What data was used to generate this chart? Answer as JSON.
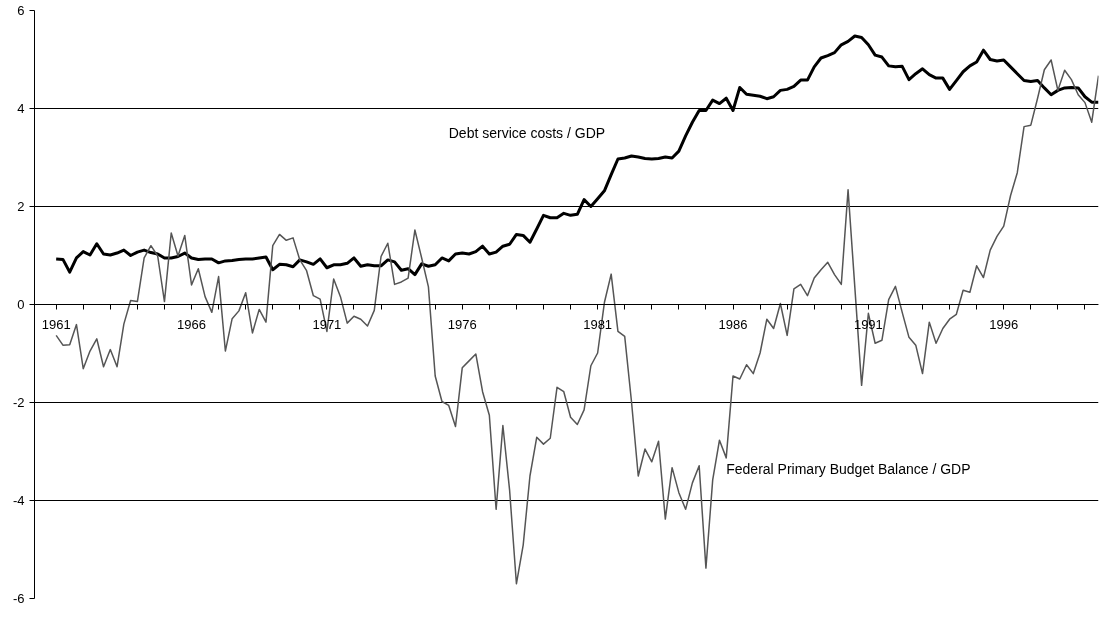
{
  "chart_data": {
    "type": "line",
    "categories": [
      "1961",
      null,
      null,
      null,
      null,
      null,
      null,
      null,
      null,
      null,
      null,
      null,
      null,
      null,
      null,
      null,
      null,
      null,
      null,
      null,
      "1966",
      null,
      null,
      null,
      null,
      null,
      null,
      null,
      null,
      null,
      null,
      null,
      null,
      null,
      null,
      null,
      null,
      null,
      null,
      null,
      "1971",
      null,
      null,
      null,
      null,
      null,
      null,
      null,
      null,
      null,
      null,
      null,
      null,
      null,
      null,
      null,
      null,
      null,
      null,
      null,
      "1976",
      null,
      null,
      null,
      null,
      null,
      null,
      null,
      null,
      null,
      null,
      null,
      null,
      null,
      null,
      null,
      null,
      null,
      null,
      null,
      "1981",
      null,
      null,
      null,
      null,
      null,
      null,
      null,
      null,
      null,
      null,
      null,
      null,
      null,
      null,
      null,
      null,
      null,
      null,
      null,
      "1986",
      null,
      null,
      null,
      null,
      null,
      null,
      null,
      null,
      null,
      null,
      null,
      null,
      null,
      null,
      null,
      null,
      null,
      null,
      null,
      "1991",
      null,
      null,
      null,
      null,
      null,
      null,
      null,
      null,
      null,
      null,
      null,
      null,
      null,
      null,
      null,
      null,
      null,
      null,
      null,
      "1996",
      null,
      null,
      null,
      null,
      null,
      null,
      null,
      null,
      null,
      null,
      null,
      null,
      null,
      null
    ],
    "ylim": [
      -6,
      6
    ],
    "yticks": [
      -6,
      -4,
      -2,
      0,
      2,
      4,
      6
    ],
    "grid": "y",
    "marker": "none",
    "line_style": "solid",
    "annotations": [
      "Debt service costs / GDP",
      "Federal Primary Budget Balance / GDP"
    ],
    "series": [
      {
        "color": "#000000",
        "values": [
          0.93,
          0.92,
          0.66,
          0.95,
          1.08,
          1.01,
          1.24,
          1.03,
          1.01,
          1.05,
          1.11,
          1.0,
          1.07,
          1.11,
          1.06,
          1.03,
          0.95,
          0.95,
          0.98,
          1.05,
          0.95,
          0.92,
          0.93,
          0.93,
          0.85,
          0.89,
          0.9,
          0.92,
          0.93,
          0.93,
          0.95,
          0.97,
          0.71,
          0.82,
          0.81,
          0.77,
          0.91,
          0.87,
          0.82,
          0.93,
          0.75,
          0.81,
          0.81,
          0.84,
          0.95,
          0.78,
          0.81,
          0.79,
          0.79,
          0.91,
          0.87,
          0.7,
          0.73,
          0.61,
          0.83,
          0.78,
          0.81,
          0.95,
          0.89,
          1.03,
          1.05,
          1.03,
          1.08,
          1.19,
          1.03,
          1.07,
          1.19,
          1.23,
          1.43,
          1.41,
          1.27,
          1.54,
          1.82,
          1.77,
          1.77,
          1.86,
          1.82,
          1.84,
          2.14,
          2.0,
          2.16,
          2.32,
          2.65,
          2.97,
          2.99,
          3.03,
          3.01,
          2.98,
          2.97,
          2.98,
          3.01,
          2.99,
          3.13,
          3.44,
          3.72,
          3.96,
          3.96,
          4.17,
          4.1,
          4.21,
          3.96,
          4.43,
          4.29,
          4.27,
          4.25,
          4.2,
          4.24,
          4.37,
          4.39,
          4.45,
          4.58,
          4.58,
          4.85,
          5.03,
          5.08,
          5.14,
          5.3,
          5.37,
          5.48,
          5.45,
          5.3,
          5.09,
          5.05,
          4.87,
          4.85,
          4.86,
          4.59,
          4.71,
          4.81,
          4.69,
          4.62,
          4.62,
          4.39,
          4.57,
          4.75,
          4.87,
          4.95,
          5.19,
          5.0,
          4.97,
          4.99,
          4.85,
          4.71,
          4.57,
          4.55,
          4.57,
          4.42,
          4.28,
          4.37,
          4.42,
          4.43,
          4.42,
          4.24,
          4.13,
          4.13
        ]
      },
      {
        "color": "#555555",
        "values": [
          -0.63,
          -0.83,
          -0.82,
          -0.41,
          -1.31,
          -0.95,
          -0.7,
          -1.27,
          -0.92,
          -1.27,
          -0.4,
          0.08,
          0.06,
          0.95,
          1.2,
          0.99,
          0.06,
          1.46,
          0.99,
          1.41,
          0.4,
          0.73,
          0.16,
          -0.16,
          0.57,
          -0.95,
          -0.29,
          -0.13,
          0.24,
          -0.58,
          -0.1,
          -0.36,
          1.2,
          1.43,
          1.31,
          1.36,
          0.91,
          0.69,
          0.18,
          0.11,
          -0.55,
          0.52,
          0.16,
          -0.38,
          -0.24,
          -0.3,
          -0.44,
          -0.12,
          0.98,
          1.25,
          0.41,
          0.46,
          0.54,
          1.52,
          0.95,
          0.36,
          -1.46,
          -1.98,
          -2.06,
          -2.49,
          -1.29,
          -1.15,
          -1.01,
          -1.78,
          -2.26,
          -4.18,
          -2.47,
          -3.8,
          -5.7,
          -4.91,
          -3.5,
          -2.71,
          -2.85,
          -2.73,
          -1.69,
          -1.78,
          -2.3,
          -2.45,
          -2.15,
          -1.25,
          -0.99,
          0.04,
          0.62,
          -0.55,
          -0.65,
          -1.98,
          -3.5,
          -2.95,
          -3.21,
          -2.79,
          -4.38,
          -3.33,
          -3.84,
          -4.18,
          -3.64,
          -3.29,
          -5.38,
          -3.58,
          -2.77,
          -3.13,
          -1.46,
          -1.52,
          -1.23,
          -1.41,
          -0.99,
          -0.3,
          -0.49,
          0.02,
          -0.63,
          0.32,
          0.41,
          0.18,
          0.54,
          0.71,
          0.86,
          0.61,
          0.41,
          2.34,
          0.35,
          -1.65,
          -0.18,
          -0.79,
          -0.73,
          0.1,
          0.37,
          -0.16,
          -0.67,
          -0.83,
          -1.41,
          -0.36,
          -0.79,
          -0.49,
          -0.3,
          -0.2,
          0.29,
          0.25,
          0.79,
          0.55,
          1.11,
          1.39,
          1.6,
          2.22,
          2.69,
          3.63,
          3.66,
          4.21,
          4.79,
          4.99,
          4.37,
          4.78,
          4.59,
          4.28,
          4.12,
          3.72,
          4.67
        ]
      }
    ]
  }
}
